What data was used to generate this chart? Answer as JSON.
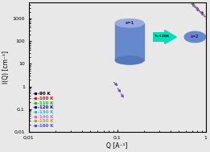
{
  "title": "",
  "xlabel": "Q [A⁻¹]",
  "ylabel": "I(Q) [cm⁻¹]",
  "xlim": [
    0.01,
    1.0
  ],
  "ylim": [
    0.01,
    5000
  ],
  "series": [
    {
      "label": "90 K",
      "color": "#000000",
      "T": 90
    },
    {
      "label": "100 K",
      "color": "#ff0000",
      "T": 100
    },
    {
      "label": "110 K",
      "color": "#00cc00",
      "T": 110
    },
    {
      "label": "120 K",
      "color": "#0000ff",
      "T": 120
    },
    {
      "label": "130 K",
      "color": "#00cccc",
      "T": 130
    },
    {
      "label": "140 K",
      "color": "#ff44ff",
      "T": 140
    },
    {
      "label": "150 K",
      "color": "#aaaa00",
      "T": 150
    },
    {
      "label": "160 K",
      "color": "#4444ff",
      "T": 160
    }
  ],
  "bg_color": "#e8e8e8",
  "cylinder_body_color": "#6688cc",
  "cylinder_top_color": "#99aade",
  "cylinder_bottom_color": "#5577bb",
  "ellipse_color": "#6688cc",
  "arrow_color": "#00ddbb"
}
